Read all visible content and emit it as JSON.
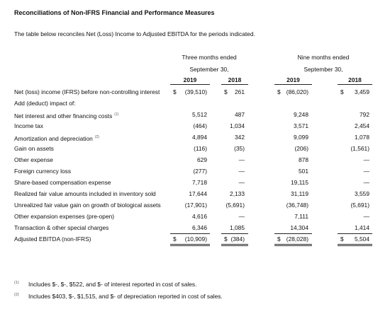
{
  "title": "Reconciliations of Non-IFRS Financial and Performance Measures",
  "intro": "The table below reconciles Net (Loss) Income to Adjusted EBITDA for the periods indicated.",
  "table": {
    "groups": [
      {
        "line1": "Three months ended",
        "line2": "September 30,",
        "years": [
          "2019",
          "2018"
        ]
      },
      {
        "line1": "Nine months ended",
        "line2": "September 30,",
        "years": [
          "2019",
          "2018"
        ]
      }
    ],
    "rows": [
      {
        "label": "Net (loss) income (IFRS) before non-controlling interest",
        "currency": "$",
        "values": [
          "(39,510)",
          "261",
          "(86,020)",
          "3,459"
        ]
      },
      {
        "label": "Add (deduct) impact of:"
      },
      {
        "label": "Net interest and other financing costs",
        "note": "(1)",
        "values": [
          "5,512",
          "487",
          "9,248",
          "792"
        ]
      },
      {
        "label": "Income tax",
        "values": [
          "(464)",
          "1,034",
          "3,571",
          "2,454"
        ]
      },
      {
        "label": "Amortization and depreciation",
        "note": "(2)",
        "values": [
          "4,894",
          "342",
          "9,099",
          "1,078"
        ]
      },
      {
        "label": "Gain on assets",
        "values": [
          "(116)",
          "(35)",
          "(206)",
          "(1,561)"
        ]
      },
      {
        "label": "Other expense",
        "values": [
          "629",
          "—",
          "878",
          "—"
        ]
      },
      {
        "label": "Foreign currency loss",
        "values": [
          "(277)",
          "—",
          "501",
          "—"
        ]
      },
      {
        "label": "Share-based compensation expense",
        "values": [
          "7,718",
          "—",
          "19,115",
          "—"
        ]
      },
      {
        "label": "Realized fair value amounts included in inventory sold",
        "values": [
          "17,644",
          "2,133",
          "31,119",
          "3,559"
        ]
      },
      {
        "label": "Unrealized fair value gain on growth of biological assets",
        "values": [
          "(17,901)",
          "(5,691)",
          "(36,748)",
          "(5,691)"
        ]
      },
      {
        "label": "Other expansion expenses (pre-open)",
        "values": [
          "4,616",
          "—",
          "7,111",
          "—"
        ]
      },
      {
        "label": "Transaction & other special charges",
        "values": [
          "6,346",
          "1,085",
          "14,304",
          "1,414"
        ]
      },
      {
        "label": "Adjusted EBITDA (non-IFRS)",
        "currency": "$",
        "values": [
          "(10,909)",
          "(384)",
          "(28,028)",
          "5,504"
        ]
      }
    ]
  },
  "footnotes": [
    {
      "marker": "(1)",
      "text": "Includes $-, $-, $522, and $- of interest reported in cost of sales."
    },
    {
      "marker": "(2)",
      "text": "Includes $403, $-, $1,515, and $- of depreciation reported in cost of sales."
    }
  ]
}
